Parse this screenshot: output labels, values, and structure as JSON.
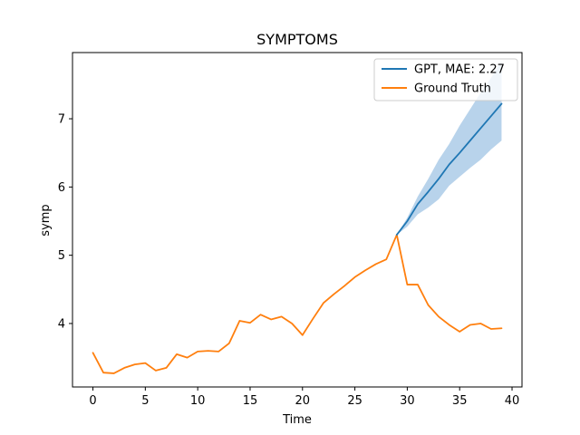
{
  "chart_data": {
    "type": "line",
    "title": "SYMPTOMS",
    "xlabel": "Time",
    "ylabel": "symp",
    "xlim": [
      -1.95,
      40.95
    ],
    "ylim": [
      3.07,
      7.97
    ],
    "xticks": [
      0,
      5,
      10,
      15,
      20,
      25,
      30,
      35,
      40
    ],
    "yticks": [
      4,
      5,
      6,
      7
    ],
    "grid": false,
    "legend_position": "top-right",
    "series": [
      {
        "name": "GPT, MAE: 2.27",
        "color": "#1f77b4",
        "x": [
          29,
          30,
          31,
          32,
          33,
          34,
          35,
          36,
          37,
          38,
          39
        ],
        "y": [
          5.3,
          5.5,
          5.75,
          5.93,
          6.12,
          6.33,
          6.5,
          6.68,
          6.86,
          7.04,
          7.22
        ],
        "band_color": "#a6c8e6",
        "band_lower": [
          5.3,
          5.42,
          5.6,
          5.7,
          5.82,
          6.02,
          6.15,
          6.28,
          6.4,
          6.55,
          6.68
        ],
        "band_upper": [
          5.3,
          5.55,
          5.86,
          6.12,
          6.4,
          6.63,
          6.9,
          7.14,
          7.38,
          7.6,
          7.85
        ]
      },
      {
        "name": "Ground Truth",
        "color": "#ff7f0e",
        "x": [
          0,
          1,
          2,
          3,
          4,
          5,
          6,
          7,
          8,
          9,
          10,
          11,
          12,
          13,
          14,
          15,
          16,
          17,
          18,
          19,
          20,
          21,
          22,
          23,
          24,
          25,
          26,
          27,
          28,
          29,
          30,
          31,
          32,
          33,
          34,
          35,
          36,
          37,
          38,
          39
        ],
        "y": [
          3.57,
          3.28,
          3.27,
          3.35,
          3.4,
          3.42,
          3.31,
          3.35,
          3.55,
          3.5,
          3.59,
          3.6,
          3.59,
          3.71,
          4.04,
          4.01,
          4.13,
          4.06,
          4.1,
          4.0,
          3.83,
          4.07,
          4.3,
          4.43,
          4.55,
          4.68,
          4.78,
          4.87,
          4.94,
          5.3,
          4.57,
          4.57,
          4.27,
          4.1,
          3.98,
          3.88,
          3.98,
          4.0,
          3.92,
          3.93
        ]
      }
    ]
  }
}
